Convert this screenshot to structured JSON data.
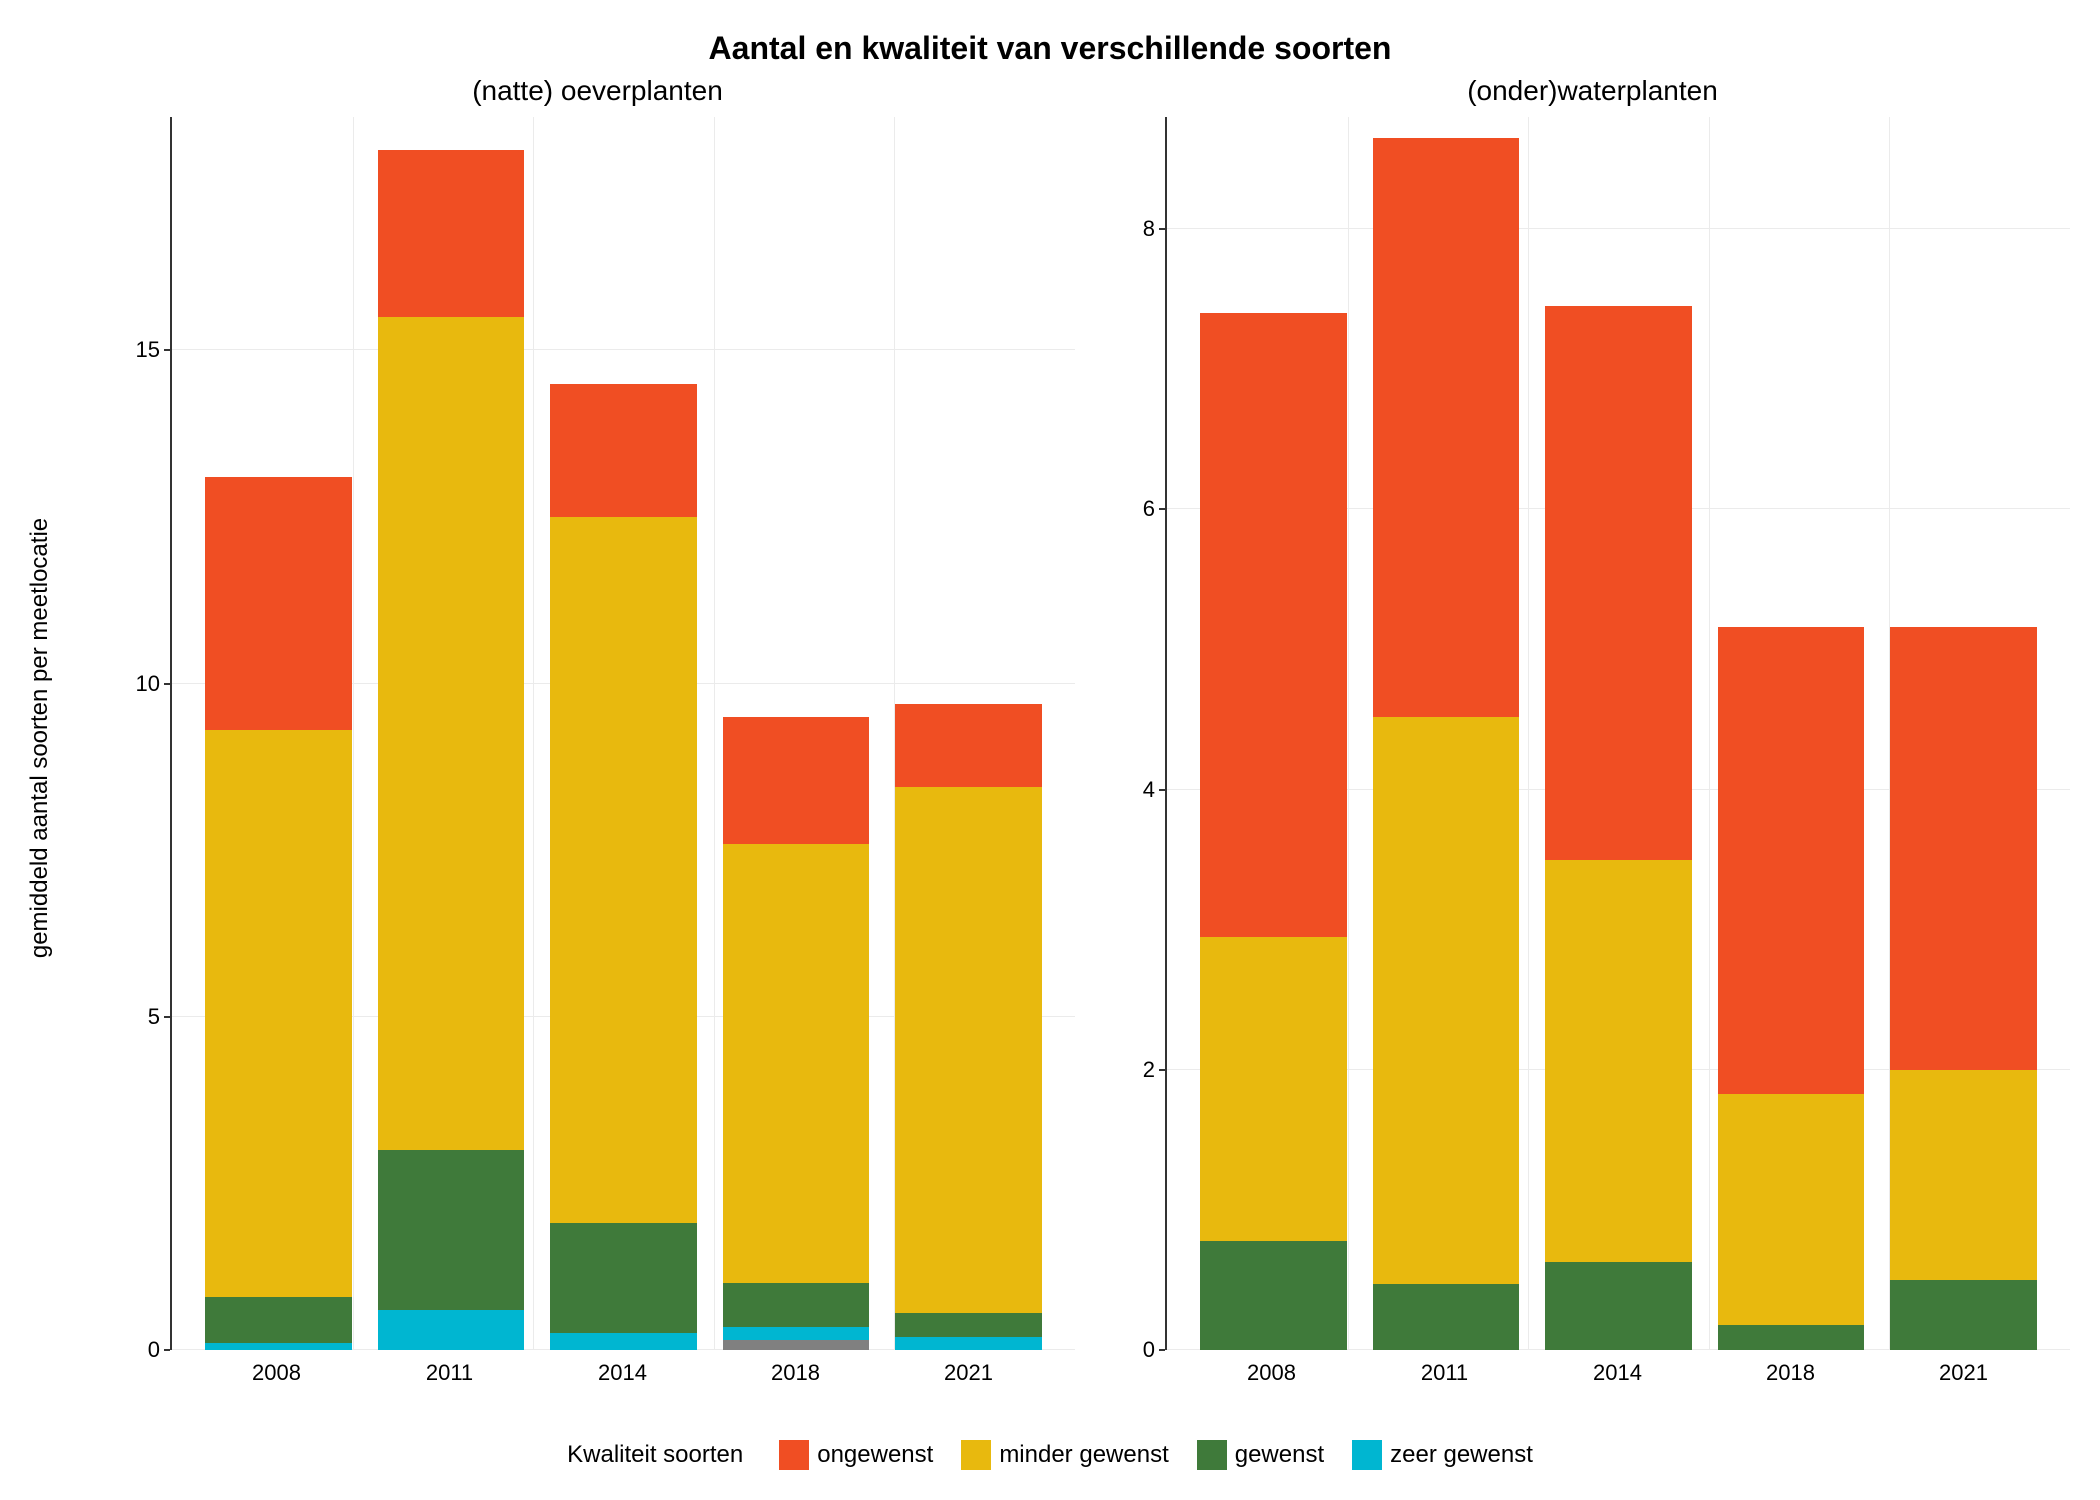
{
  "title": "Aantal en kwaliteit van verschillende soorten",
  "title_fontsize": 32,
  "y_axis_label": "gemiddeld aantal soorten per meetlocatie",
  "label_fontsize": 24,
  "panel_title_fontsize": 28,
  "tick_fontsize": 22,
  "legend_fontsize": 24,
  "background_color": "#ffffff",
  "grid_color": "#ebebeb",
  "colors": {
    "ongewenst": "#f04e23",
    "minder_gewenst": "#e8b90e",
    "gewenst": "#3f7a3a",
    "zeer_gewenst": "#00b6d1",
    "extra_gray": "#808080"
  },
  "legend": {
    "title": "Kwaliteit soorten",
    "items": [
      {
        "key": "ongewenst",
        "label": "ongewenst",
        "color": "#f04e23"
      },
      {
        "key": "minder_gewenst",
        "label": "minder gewenst",
        "color": "#e8b90e"
      },
      {
        "key": "gewenst",
        "label": "gewenst",
        "color": "#3f7a3a"
      },
      {
        "key": "zeer_gewenst",
        "label": "zeer gewenst",
        "color": "#00b6d1"
      }
    ]
  },
  "panels": [
    {
      "title": "(natte) oeverplanten",
      "ylim": [
        0,
        18.5
      ],
      "yticks": [
        0,
        5,
        10,
        15
      ],
      "categories": [
        "2008",
        "2011",
        "2014",
        "2018",
        "2021"
      ],
      "stack_order": [
        "extra_gray",
        "zeer_gewenst",
        "gewenst",
        "minder_gewenst",
        "ongewenst"
      ],
      "bars": [
        {
          "extra_gray": 0.0,
          "zeer_gewenst": 0.1,
          "gewenst": 0.7,
          "minder_gewenst": 8.5,
          "ongewenst": 3.8
        },
        {
          "extra_gray": 0.0,
          "zeer_gewenst": 0.6,
          "gewenst": 2.4,
          "minder_gewenst": 12.5,
          "ongewenst": 2.5
        },
        {
          "extra_gray": 0.0,
          "zeer_gewenst": 0.25,
          "gewenst": 1.65,
          "minder_gewenst": 10.6,
          "ongewenst": 2.0
        },
        {
          "extra_gray": 0.15,
          "zeer_gewenst": 0.2,
          "gewenst": 0.65,
          "minder_gewenst": 6.6,
          "ongewenst": 1.9
        },
        {
          "extra_gray": 0.0,
          "zeer_gewenst": 0.2,
          "gewenst": 0.35,
          "minder_gewenst": 7.9,
          "ongewenst": 1.25
        }
      ]
    },
    {
      "title": "(onder)waterplanten",
      "ylim": [
        0,
        8.8
      ],
      "yticks": [
        0,
        2,
        4,
        6,
        8
      ],
      "categories": [
        "2008",
        "2011",
        "2014",
        "2018",
        "2021"
      ],
      "stack_order": [
        "zeer_gewenst",
        "gewenst",
        "minder_gewenst",
        "ongewenst"
      ],
      "bars": [
        {
          "zeer_gewenst": 0.0,
          "gewenst": 0.78,
          "minder_gewenst": 2.17,
          "ongewenst": 4.45
        },
        {
          "zeer_gewenst": 0.0,
          "gewenst": 0.47,
          "minder_gewenst": 4.05,
          "ongewenst": 4.13
        },
        {
          "zeer_gewenst": 0.0,
          "gewenst": 0.63,
          "minder_gewenst": 2.87,
          "ongewenst": 3.95
        },
        {
          "zeer_gewenst": 0.0,
          "gewenst": 0.18,
          "minder_gewenst": 1.65,
          "ongewenst": 3.33
        },
        {
          "zeer_gewenst": 0.0,
          "gewenst": 0.5,
          "minder_gewenst": 1.5,
          "ongewenst": 3.16
        }
      ]
    }
  ]
}
